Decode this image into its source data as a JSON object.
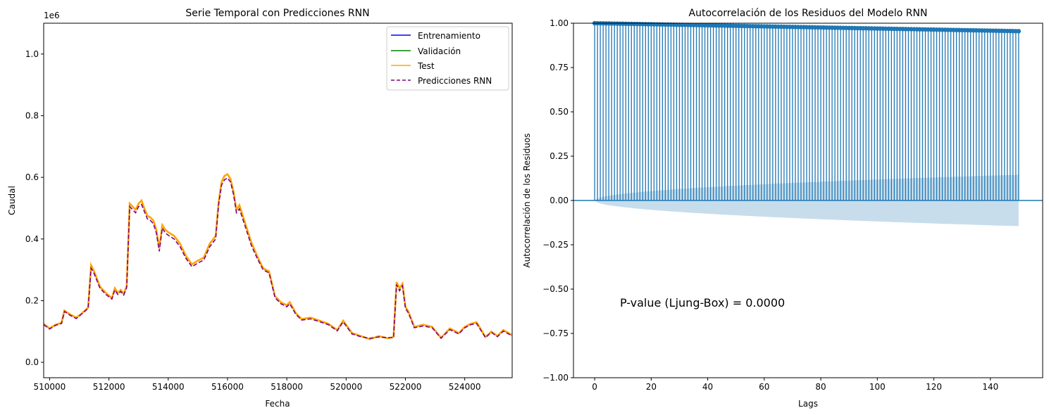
{
  "chart_data": [
    {
      "type": "line",
      "title": "Serie Temporal con Predicciones RNN",
      "xlabel": "Fecha",
      "ylabel": "Caudal",
      "y_offset_label": "1e6",
      "xlim": [
        509800,
        525600
      ],
      "ylim": [
        -50000,
        1100000
      ],
      "xticks": [
        510000,
        512000,
        514000,
        516000,
        518000,
        520000,
        522000,
        524000
      ],
      "yticks": [
        0,
        200000,
        400000,
        600000,
        800000,
        1000000
      ],
      "ytick_labels": [
        "0.0",
        "0.2",
        "0.4",
        "0.6",
        "0.8",
        "1.0"
      ],
      "legend_position": "top-right",
      "legend": [
        "Entrenamiento",
        "Validación",
        "Test",
        "Predicciones RNN"
      ],
      "series": [
        {
          "name": "Entrenamiento",
          "color": "#0000ff",
          "style": "solid",
          "x": [],
          "y": []
        },
        {
          "name": "Validación",
          "color": "#008000",
          "style": "solid",
          "x": [],
          "y": []
        },
        {
          "name": "Test",
          "color": "#ffa500",
          "style": "solid",
          "x": [
            509800,
            510000,
            510200,
            510400,
            510500,
            510700,
            510900,
            511100,
            511300,
            511400,
            511500,
            511700,
            511900,
            512100,
            512200,
            512300,
            512400,
            512500,
            512600,
            512700,
            512800,
            512900,
            513000,
            513100,
            513200,
            513300,
            513400,
            513500,
            513600,
            513700,
            513800,
            513900,
            514000,
            514200,
            514400,
            514600,
            514800,
            515000,
            515200,
            515400,
            515600,
            515700,
            515800,
            515900,
            516000,
            516100,
            516200,
            516300,
            516400,
            516600,
            516800,
            517000,
            517200,
            517400,
            517600,
            517800,
            518000,
            518100,
            518300,
            518500,
            518800,
            519100,
            519400,
            519700,
            519900,
            520200,
            520500,
            520800,
            521100,
            521400,
            521600,
            521700,
            521800,
            521900,
            522000,
            522100,
            522300,
            522600,
            522900,
            523200,
            523500,
            523800,
            524000,
            524200,
            524400,
            524700,
            524900,
            525100,
            525300,
            525600
          ],
          "y": [
            125000,
            110000,
            122000,
            128000,
            168000,
            155000,
            145000,
            160000,
            178000,
            315000,
            295000,
            245000,
            225000,
            208000,
            240000,
            225000,
            235000,
            222000,
            248000,
            515000,
            505000,
            495000,
            515000,
            525000,
            498000,
            475000,
            470000,
            460000,
            430000,
            370000,
            445000,
            430000,
            422000,
            410000,
            385000,
            345000,
            318000,
            330000,
            340000,
            385000,
            410000,
            520000,
            585000,
            605000,
            610000,
            595000,
            555000,
            495000,
            510000,
            450000,
            390000,
            345000,
            305000,
            295000,
            215000,
            195000,
            185000,
            195000,
            160000,
            140000,
            145000,
            135000,
            125000,
            105000,
            135000,
            95000,
            85000,
            75000,
            85000,
            78000,
            82000,
            260000,
            240000,
            255000,
            180000,
            165000,
            115000,
            122000,
            115000,
            80000,
            110000,
            95000,
            115000,
            125000,
            130000,
            82000,
            100000,
            85000,
            105000,
            88000
          ]
        },
        {
          "name": "Predicciones RNN",
          "color": "#800080",
          "style": "dashed",
          "x": [
            509800,
            510000,
            510200,
            510400,
            510500,
            510700,
            510900,
            511100,
            511300,
            511400,
            511500,
            511700,
            511900,
            512100,
            512200,
            512300,
            512400,
            512500,
            512600,
            512700,
            512800,
            512900,
            513000,
            513100,
            513200,
            513300,
            513400,
            513500,
            513600,
            513700,
            513800,
            513900,
            514000,
            514200,
            514400,
            514600,
            514800,
            515000,
            515200,
            515400,
            515600,
            515700,
            515800,
            515900,
            516000,
            516100,
            516200,
            516300,
            516400,
            516600,
            516800,
            517000,
            517200,
            517400,
            517600,
            517800,
            518000,
            518100,
            518300,
            518500,
            518800,
            519100,
            519400,
            519700,
            519900,
            520200,
            520500,
            520800,
            521100,
            521400,
            521600,
            521700,
            521800,
            521900,
            522000,
            522100,
            522300,
            522600,
            522900,
            523200,
            523500,
            523800,
            524000,
            524200,
            524400,
            524700,
            524900,
            525100,
            525300,
            525600
          ],
          "y": [
            122000,
            108000,
            120000,
            126000,
            165000,
            152000,
            142000,
            158000,
            175000,
            305000,
            288000,
            240000,
            220000,
            205000,
            235000,
            220000,
            230000,
            218000,
            242000,
            505000,
            495000,
            485000,
            505000,
            512000,
            488000,
            465000,
            460000,
            450000,
            420000,
            360000,
            435000,
            420000,
            412000,
            400000,
            375000,
            337000,
            310000,
            322000,
            332000,
            375000,
            400000,
            510000,
            575000,
            592000,
            598000,
            585000,
            545000,
            485000,
            498000,
            440000,
            380000,
            338000,
            300000,
            290000,
            210000,
            190000,
            180000,
            190000,
            156000,
            137000,
            141000,
            132000,
            122000,
            102000,
            131000,
            92000,
            83000,
            78000,
            82000,
            80000,
            80000,
            252000,
            232000,
            248000,
            175000,
            160000,
            112000,
            118000,
            112000,
            78000,
            106000,
            92000,
            112000,
            122000,
            126000,
            80000,
            97000,
            83000,
            101000,
            86000
          ]
        }
      ]
    },
    {
      "type": "stem",
      "title": "Autocorrelación de los Residuos del Modelo RNN",
      "xlabel": "Lags",
      "ylabel": "Autocorrelación de los Residuos",
      "xlim": [
        -7.5,
        158.5
      ],
      "ylim": [
        -1.0,
        1.0
      ],
      "xticks": [
        0,
        20,
        40,
        60,
        80,
        100,
        120,
        140
      ],
      "yticks": [
        -1.0,
        -0.75,
        -0.5,
        -0.25,
        0.0,
        0.25,
        0.5,
        0.75,
        1.0
      ],
      "ytick_labels": [
        "−1.00",
        "−0.75",
        "−0.50",
        "−0.25",
        "0.00",
        "0.25",
        "0.50",
        "0.75",
        "1.00"
      ],
      "lags": 150,
      "acf_start": 1.0,
      "acf_end": 0.955,
      "confidence_band_end": 0.145,
      "color": "#1f77b4",
      "annotation": {
        "text": "P-value (Ljung-Box) = 0.0000",
        "color": "#ff0000",
        "x": 9,
        "y": -0.58
      }
    }
  ]
}
